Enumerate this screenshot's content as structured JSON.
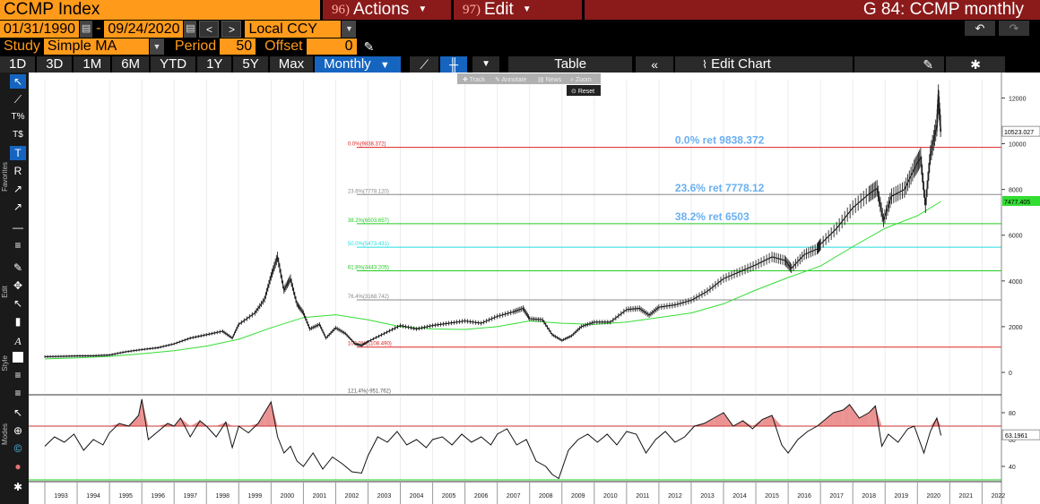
{
  "titlebar": {
    "security": "CCMP Index",
    "actions_num": "96)",
    "actions_label": "Actions",
    "edit_num": "97)",
    "edit_label": "Edit",
    "chart_title": "G 84: CCMP monthly"
  },
  "daterange": {
    "start": "01/31/1990",
    "end": "09/24/2020",
    "currency": "Local CCY"
  },
  "study": {
    "study_label": "Study",
    "study_value": "Simple MA",
    "period_label": "Period",
    "period_value": "50",
    "offset_label": "Offset",
    "offset_value": "0"
  },
  "periods": [
    "1D",
    "3D",
    "1M",
    "6M",
    "YTD",
    "1Y",
    "5Y",
    "Max"
  ],
  "frequency": "Monthly",
  "toolbar": {
    "table_label": "Table",
    "edit_chart_label": "Edit Chart"
  },
  "chart_menu": {
    "track": "Track",
    "annotate": "Annotate",
    "news": "News",
    "zoom": "Zoom",
    "reset": "Reset"
  },
  "side_labels": {
    "favorites": "Favorites",
    "edit": "Edit",
    "style": "Style",
    "modes": "Modes"
  },
  "colors": {
    "accent_orange": "#ff9a1a",
    "title_red": "#8b1a1a",
    "selected_blue": "#1565c0",
    "ma_line": "#33dd33",
    "fib_red": "#dd2222",
    "fib_green": "#22cc22",
    "fib_cyan": "#22dddd",
    "annotation_blue": "#6ab0f0",
    "rsi_fill": "#e88080"
  },
  "chart_data": {
    "type": "line",
    "series": [
      {
        "values": [
          [
            1993.0,
            690
          ],
          [
            1993.5,
            700
          ],
          [
            1994.0,
            720
          ],
          [
            1994.5,
            730
          ],
          [
            1995.0,
            760
          ],
          [
            1995.5,
            900
          ],
          [
            1996.0,
            1000
          ],
          [
            1996.5,
            1080
          ],
          [
            1997.0,
            1250
          ],
          [
            1997.5,
            1500
          ],
          [
            1998.0,
            1650
          ],
          [
            1998.5,
            1800
          ],
          [
            1998.8,
            1500
          ],
          [
            1999.0,
            2100
          ],
          [
            1999.5,
            2600
          ],
          [
            1999.8,
            3200
          ],
          [
            2000.0,
            4200
          ],
          [
            2000.2,
            5050
          ],
          [
            2000.4,
            3600
          ],
          [
            2000.6,
            4100
          ],
          [
            2000.8,
            3000
          ],
          [
            2001.0,
            2600
          ],
          [
            2001.2,
            1900
          ],
          [
            2001.5,
            2100
          ],
          [
            2001.7,
            1500
          ],
          [
            2002.0,
            1950
          ],
          [
            2002.3,
            1700
          ],
          [
            2002.6,
            1250
          ],
          [
            2002.8,
            1180
          ],
          [
            2003.0,
            1350
          ],
          [
            2003.5,
            1700
          ],
          [
            2004.0,
            2050
          ],
          [
            2004.5,
            1900
          ],
          [
            2005.0,
            2050
          ],
          [
            2005.5,
            2150
          ],
          [
            2006.0,
            2250
          ],
          [
            2006.5,
            2150
          ],
          [
            2007.0,
            2450
          ],
          [
            2007.5,
            2650
          ],
          [
            2007.8,
            2800
          ],
          [
            2008.0,
            2350
          ],
          [
            2008.4,
            2300
          ],
          [
            2008.7,
            1650
          ],
          [
            2009.0,
            1400
          ],
          [
            2009.3,
            1600
          ],
          [
            2009.6,
            2000
          ],
          [
            2010.0,
            2200
          ],
          [
            2010.5,
            2200
          ],
          [
            2011.0,
            2750
          ],
          [
            2011.4,
            2800
          ],
          [
            2011.7,
            2500
          ],
          [
            2012.0,
            2850
          ],
          [
            2012.5,
            2950
          ],
          [
            2013.0,
            3150
          ],
          [
            2013.5,
            3550
          ],
          [
            2014.0,
            4100
          ],
          [
            2014.5,
            4400
          ],
          [
            2015.0,
            4700
          ],
          [
            2015.5,
            5050
          ],
          [
            2015.9,
            4900
          ],
          [
            2016.1,
            4550
          ],
          [
            2016.5,
            5150
          ],
          [
            2016.9,
            5400
          ],
          [
            2017.0,
            5600
          ],
          [
            2017.5,
            6300
          ],
          [
            2018.0,
            7200
          ],
          [
            2018.5,
            7800
          ],
          [
            2018.75,
            8050
          ],
          [
            2018.95,
            6650
          ],
          [
            2019.2,
            7700
          ],
          [
            2019.6,
            8000
          ],
          [
            2019.9,
            8900
          ],
          [
            2020.1,
            9400
          ],
          [
            2020.25,
            7300
          ],
          [
            2020.4,
            9500
          ],
          [
            2020.6,
            10800
          ],
          [
            2020.65,
            12050
          ],
          [
            2020.73,
            10523.027
          ]
        ]
      },
      {
        "values": [
          [
            1993.0,
            590
          ],
          [
            1994.0,
            640
          ],
          [
            1995.0,
            700
          ],
          [
            1996.0,
            820
          ],
          [
            1997.0,
            950
          ],
          [
            1998.0,
            1150
          ],
          [
            1999.0,
            1450
          ],
          [
            2000.0,
            1950
          ],
          [
            2001.0,
            2400
          ],
          [
            2002.0,
            2520
          ],
          [
            2003.0,
            2300
          ],
          [
            2004.0,
            2000
          ],
          [
            2005.0,
            1900
          ],
          [
            2006.0,
            1880
          ],
          [
            2007.0,
            2000
          ],
          [
            2008.0,
            2250
          ],
          [
            2009.0,
            2150
          ],
          [
            2010.0,
            2100
          ],
          [
            2011.0,
            2200
          ],
          [
            2012.0,
            2400
          ],
          [
            2013.0,
            2600
          ],
          [
            2014.0,
            3000
          ],
          [
            2015.0,
            3600
          ],
          [
            2016.0,
            4150
          ],
          [
            2017.0,
            4650
          ],
          [
            2018.0,
            5500
          ],
          [
            2019.0,
            6300
          ],
          [
            2020.0,
            6850
          ],
          [
            2020.73,
            7477.405
          ]
        ]
      }
    ],
    "fibonacci": [
      {
        "label": "0.0%(9838.372)",
        "value": 9838.372,
        "color": "#dd2222"
      },
      {
        "label": "23.6%(7778.120)",
        "value": 7778.12,
        "color": "#888888"
      },
      {
        "label": "38.2%(6503.657)",
        "value": 6503.657,
        "color": "#22cc22"
      },
      {
        "label": "50.0%(5473.431)",
        "value": 5473.431,
        "color": "#22dddd"
      },
      {
        "label": "61.8%(4443.205)",
        "value": 4443.205,
        "color": "#22cc22"
      },
      {
        "label": "76.4%(3168.742)",
        "value": 3168.742,
        "color": "#888888"
      },
      {
        "label": "100.0%(1108.490)",
        "value": 1108.49,
        "color": "#dd2222"
      },
      {
        "label": "121.4%(-951.762)",
        "value": -951.762,
        "color": "#555555"
      }
    ],
    "annotations": [
      {
        "text": "0.0% ret 9838.372",
        "value": 10000
      },
      {
        "text": "23.6% ret 7778.12",
        "value": 7900
      },
      {
        "text": "38.2% ret 6503",
        "value": 6650
      }
    ],
    "last_price": "10523.027",
    "last_ma": "7477.405",
    "yticks": [
      0,
      2000,
      4000,
      6000,
      8000,
      10000,
      12000
    ],
    "ylim": [
      -900,
      12800
    ],
    "xlim": [
      1992.5,
      2022.6
    ],
    "years": [
      1993,
      1994,
      1995,
      1996,
      1997,
      1998,
      1999,
      2000,
      2001,
      2002,
      2003,
      2004,
      2005,
      2006,
      2007,
      2008,
      2009,
      2010,
      2011,
      2012,
      2013,
      2014,
      2015,
      2016,
      2017,
      2018,
      2019,
      2020,
      2021,
      2022
    ],
    "rsi": {
      "last": "63.1961",
      "yticks": [
        40,
        60,
        80
      ],
      "ylim": [
        30,
        92
      ],
      "overbought": 70,
      "oversold": 30,
      "values": [
        [
          1993.0,
          55
        ],
        [
          1993.3,
          62
        ],
        [
          1993.6,
          58
        ],
        [
          1993.9,
          64
        ],
        [
          1994.2,
          52
        ],
        [
          1994.5,
          60
        ],
        [
          1994.8,
          56
        ],
        [
          1995.0,
          65
        ],
        [
          1995.3,
          72
        ],
        [
          1995.6,
          70
        ],
        [
          1995.9,
          78
        ],
        [
          1996.0,
          90
        ],
        [
          1996.2,
          60
        ],
        [
          1996.5,
          66
        ],
        [
          1996.8,
          72
        ],
        [
          1997.0,
          70
        ],
        [
          1997.2,
          76
        ],
        [
          1997.5,
          62
        ],
        [
          1997.8,
          74
        ],
        [
          1998.0,
          70
        ],
        [
          1998.3,
          62
        ],
        [
          1998.6,
          73
        ],
        [
          1998.8,
          54
        ],
        [
          1999.0,
          70
        ],
        [
          1999.3,
          65
        ],
        [
          1999.6,
          72
        ],
        [
          1999.8,
          80
        ],
        [
          2000.0,
          88
        ],
        [
          2000.2,
          62
        ],
        [
          2000.4,
          50
        ],
        [
          2000.6,
          55
        ],
        [
          2000.8,
          44
        ],
        [
          2001.0,
          40
        ],
        [
          2001.3,
          50
        ],
        [
          2001.6,
          38
        ],
        [
          2001.9,
          47
        ],
        [
          2002.2,
          42
        ],
        [
          2002.5,
          36
        ],
        [
          2002.8,
          35
        ],
        [
          2003.0,
          48
        ],
        [
          2003.3,
          62
        ],
        [
          2003.6,
          58
        ],
        [
          2003.9,
          66
        ],
        [
          2004.2,
          56
        ],
        [
          2004.5,
          60
        ],
        [
          2004.8,
          54
        ],
        [
          2005.0,
          60
        ],
        [
          2005.3,
          62
        ],
        [
          2005.6,
          56
        ],
        [
          2005.9,
          64
        ],
        [
          2006.2,
          58
        ],
        [
          2006.5,
          62
        ],
        [
          2006.8,
          56
        ],
        [
          2007.0,
          64
        ],
        [
          2007.3,
          68
        ],
        [
          2007.6,
          56
        ],
        [
          2007.9,
          60
        ],
        [
          2008.2,
          44
        ],
        [
          2008.5,
          40
        ],
        [
          2008.7,
          34
        ],
        [
          2008.9,
          31
        ],
        [
          2009.2,
          52
        ],
        [
          2009.5,
          60
        ],
        [
          2009.8,
          64
        ],
        [
          2010.1,
          58
        ],
        [
          2010.4,
          64
        ],
        [
          2010.7,
          56
        ],
        [
          2011.0,
          66
        ],
        [
          2011.3,
          64
        ],
        [
          2011.6,
          50
        ],
        [
          2011.9,
          60
        ],
        [
          2012.2,
          66
        ],
        [
          2012.5,
          58
        ],
        [
          2012.8,
          62
        ],
        [
          2013.1,
          70
        ],
        [
          2013.4,
          72
        ],
        [
          2013.7,
          76
        ],
        [
          2014.0,
          80
        ],
        [
          2014.3,
          70
        ],
        [
          2014.6,
          74
        ],
        [
          2014.9,
          68
        ],
        [
          2015.2,
          75
        ],
        [
          2015.5,
          78
        ],
        [
          2015.8,
          56
        ],
        [
          2016.0,
          50
        ],
        [
          2016.3,
          60
        ],
        [
          2016.6,
          66
        ],
        [
          2016.9,
          70
        ],
        [
          2017.1,
          74
        ],
        [
          2017.4,
          80
        ],
        [
          2017.7,
          82
        ],
        [
          2017.9,
          86
        ],
        [
          2018.2,
          76
        ],
        [
          2018.5,
          80
        ],
        [
          2018.7,
          85
        ],
        [
          2018.9,
          55
        ],
        [
          2019.1,
          64
        ],
        [
          2019.4,
          58
        ],
        [
          2019.7,
          68
        ],
        [
          2019.9,
          70
        ],
        [
          2020.2,
          50
        ],
        [
          2020.4,
          66
        ],
        [
          2020.6,
          76
        ],
        [
          2020.73,
          63
        ]
      ]
    }
  }
}
